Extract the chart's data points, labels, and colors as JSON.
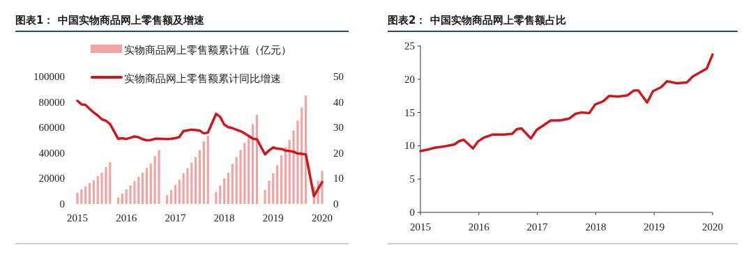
{
  "chart_data": [
    {
      "type": "bar",
      "title": "图表1： 中国实物商品网上零售额及增速",
      "legend": "top",
      "x": [
        "2015-04",
        "2015-05",
        "2015-06",
        "2015-07",
        "2015-08",
        "2015-09",
        "2015-10",
        "2015-11",
        "2015-12",
        "2016-02",
        "2016-03",
        "2016-04",
        "2016-05",
        "2016-06",
        "2016-07",
        "2016-08",
        "2016-09",
        "2016-10",
        "2016-11",
        "2016-12",
        "2017-02",
        "2017-03",
        "2017-04",
        "2017-05",
        "2017-06",
        "2017-07",
        "2017-08",
        "2017-09",
        "2017-10",
        "2017-11",
        "2017-12",
        "2018-02",
        "2018-03",
        "2018-04",
        "2018-05",
        "2018-06",
        "2018-07",
        "2018-08",
        "2018-09",
        "2018-10",
        "2018-11",
        "2018-12",
        "2019-02",
        "2019-03",
        "2019-04",
        "2019-05",
        "2019-06",
        "2019-07",
        "2019-08",
        "2019-09",
        "2019-10",
        "2019-11",
        "2019-12",
        "2020-02",
        "2020-03",
        "2020-04"
      ],
      "xlim": [
        "2015-04",
        "2020-04"
      ],
      "xticks": [
        {
          "value": "2015-04",
          "label": "2015"
        },
        {
          "value": "2016-04",
          "label": "2016"
        },
        {
          "value": "2017-04",
          "label": "2017"
        },
        {
          "value": "2018-04",
          "label": "2018"
        },
        {
          "value": "2019-04",
          "label": "2019"
        },
        {
          "value": "2020-04",
          "label": "2020"
        }
      ],
      "ylim": [
        0,
        100000
      ],
      "yticks": [
        0,
        20000,
        40000,
        60000,
        80000,
        100000
      ],
      "y2lim": [
        0,
        50
      ],
      "y2ticks": [
        0,
        10,
        20,
        30,
        40,
        50
      ],
      "series": [
        {
          "name": "实物商品网上零售额累计值（亿元）",
          "color": "#f2a3a3",
          "values": [
            8700,
            11500,
            13600,
            16400,
            18500,
            21800,
            24500,
            29000,
            32700,
            5100,
            8200,
            11500,
            14500,
            18200,
            21300,
            24500,
            28200,
            31800,
            37600,
            42200,
            6900,
            10900,
            14900,
            19100,
            24200,
            28200,
            32400,
            36900,
            42200,
            49100,
            53600,
            9500,
            14500,
            20000,
            24500,
            31500,
            36700,
            42400,
            47800,
            52700,
            62700,
            70000,
            10900,
            18200,
            24200,
            30400,
            38200,
            44500,
            50400,
            57800,
            65500,
            75800,
            85100,
            13700,
            18200,
            26000
          ]
        },
        {
          "name": "实物商品网上零售额累计同比增速",
          "type": "line",
          "axis": "y2",
          "color": "#d0161b",
          "values": [
            40.5,
            39.1,
            38.9,
            37.3,
            35.9,
            34.7,
            33.2,
            32.7,
            31.4,
            25.6,
            25.8,
            25.5,
            26.0,
            26.5,
            26.2,
            25.4,
            25.0,
            25.1,
            25.6,
            25.6,
            25.5,
            25.6,
            25.8,
            26.3,
            28.6,
            28.9,
            29.2,
            29.0,
            28.8,
            27.7,
            28.0,
            35.4,
            34.2,
            31.2,
            30.1,
            29.8,
            29.1,
            28.6,
            27.7,
            26.7,
            25.6,
            25.4,
            19.5,
            21.0,
            22.2,
            21.7,
            21.6,
            21.0,
            20.8,
            20.5,
            19.8,
            19.7,
            19.5,
            3.0,
            5.9,
            8.6
          ]
        }
      ]
    },
    {
      "type": "line",
      "title": "图表2： 中国实物商品网上零售额占比",
      "x": [
        2015.0,
        2015.16,
        2015.24,
        2015.4,
        2015.52,
        2015.58,
        2015.66,
        2015.74,
        2015.9,
        2015.98,
        2016.08,
        2016.24,
        2016.43,
        2016.57,
        2016.65,
        2016.73,
        2016.89,
        2016.99,
        2017.11,
        2017.23,
        2017.39,
        2017.55,
        2017.65,
        2017.75,
        2017.89,
        2017.99,
        2018.13,
        2018.23,
        2018.39,
        2018.55,
        2018.65,
        2018.73,
        2018.88,
        2018.98,
        2019.12,
        2019.22,
        2019.39,
        2019.56,
        2019.66,
        2019.8,
        2019.9,
        2020.0
      ],
      "xlim": [
        2015,
        2020
      ],
      "xticks": [
        2015,
        2016,
        2017,
        2018,
        2019,
        2020
      ],
      "ylim": [
        0,
        25
      ],
      "yticks": [
        0,
        5,
        10,
        15,
        20,
        25
      ],
      "series": [
        {
          "color": "#d0161b",
          "values": [
            9.2,
            9.5,
            9.7,
            9.9,
            10.1,
            10.2,
            10.7,
            10.9,
            9.6,
            10.6,
            11.2,
            11.7,
            11.7,
            11.8,
            12.5,
            12.6,
            11.1,
            12.4,
            13.1,
            13.8,
            13.8,
            14.1,
            14.8,
            15.0,
            14.9,
            16.2,
            16.7,
            17.5,
            17.4,
            17.6,
            18.3,
            18.3,
            16.5,
            18.2,
            18.8,
            19.7,
            19.4,
            19.5,
            20.4,
            21.1,
            21.6,
            23.7
          ]
        }
      ]
    }
  ]
}
